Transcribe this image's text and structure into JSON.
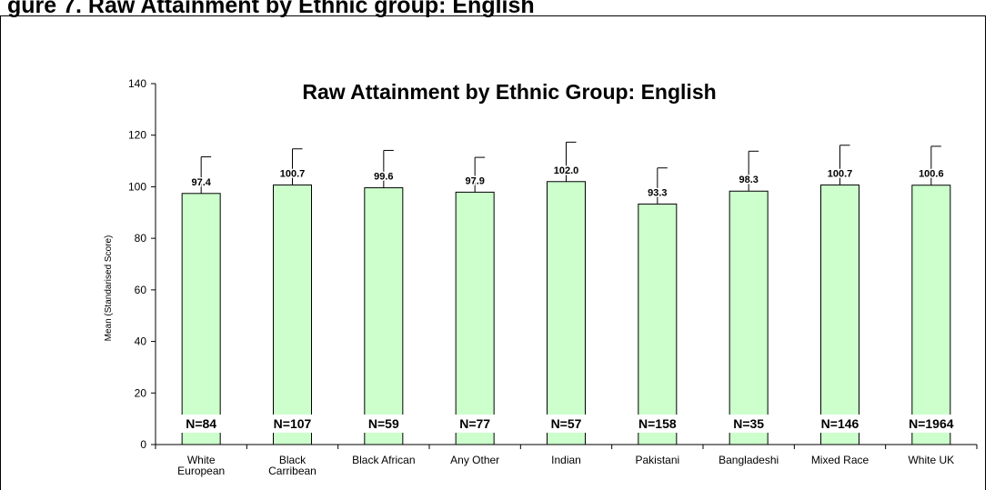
{
  "page": {
    "heading": "gure 7.     Raw Attainment by Ethnic group: English"
  },
  "chart_data": {
    "type": "bar",
    "title": "Raw Attainment by Ethnic Group: English",
    "xlabel": "",
    "ylabel": "Mean (Standarised Score)",
    "ylim": [
      0,
      140
    ],
    "yticks": [
      0,
      20,
      40,
      60,
      80,
      100,
      120,
      140
    ],
    "grid": false,
    "categories": [
      [
        "White",
        "European"
      ],
      [
        "Black",
        "Carribean"
      ],
      [
        "Black African"
      ],
      [
        "Any Other"
      ],
      [
        "Indian"
      ],
      [
        "Pakistani"
      ],
      [
        "Bangladeshi"
      ],
      [
        "Mixed Race"
      ],
      [
        "White UK"
      ]
    ],
    "values": [
      97.4,
      100.7,
      99.6,
      97.9,
      102.0,
      93.3,
      98.3,
      100.7,
      100.6
    ],
    "value_labels": [
      "97.4",
      "100.7",
      "99.6",
      "97.9",
      "102.0",
      "93.3",
      "98.3",
      "100.7",
      "100.6"
    ],
    "error_upper": [
      111.6,
      114.7,
      114.1,
      111.4,
      117.3,
      107.3,
      113.8,
      116.1,
      115.7
    ],
    "n_labels": [
      "N=84",
      "N=107",
      "N=59",
      "N=77",
      "N=57",
      "N=158",
      "N=35",
      "N=146",
      "N=1964"
    ],
    "bar_color": "#ccffcc",
    "bar_stroke": "#000000"
  }
}
